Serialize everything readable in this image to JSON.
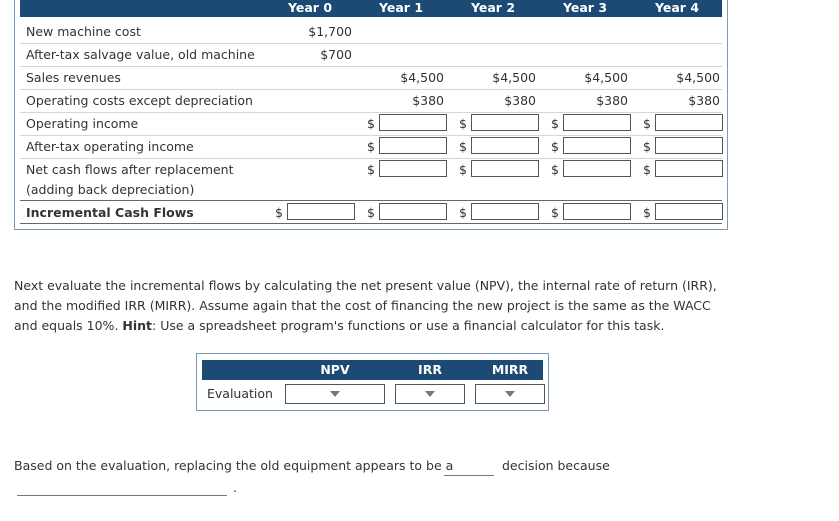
{
  "years": [
    "Year 0",
    "Year 1",
    "Year 2",
    "Year 3",
    "Year 4"
  ],
  "rows": [
    {
      "label": "New machine cost",
      "values": [
        "$1,700",
        "",
        "",
        "",
        ""
      ]
    },
    {
      "label": "After-tax salvage value, old machine",
      "values": [
        "$700",
        "",
        "",
        "",
        ""
      ]
    },
    {
      "label": "Sales revenues",
      "values": [
        "",
        "$4,500",
        "$4,500",
        "$4,500",
        "$4,500"
      ]
    },
    {
      "label": "Operating costs except depreciation",
      "values": [
        "",
        "$380",
        "$380",
        "$380",
        "$380"
      ]
    },
    {
      "label": "Operating income"
    },
    {
      "label": "After-tax operating income"
    },
    {
      "label": "Net cash flows after replacement"
    },
    {
      "label": "(adding back depreciation)"
    },
    {
      "label": "Incremental Cash Flows"
    }
  ],
  "currency_symbol": "$",
  "instructions": {
    "text": "Next evaluate the incremental flows by calculating the net present value (NPV), the internal rate of return (IRR), and the modified IRR (MIRR). Assume again that the cost of financing the new project is the same as the WACC and equals 10%. ",
    "hint_label": "Hint",
    "hint_text": ": Use a spreadsheet program's functions or use a financial calculator for this task."
  },
  "evaluation": {
    "row_label": "Evaluation",
    "columns": [
      "NPV",
      "IRR",
      "MIRR"
    ]
  },
  "conclusion": {
    "part1": "Based on the evaluation, replacing the old equipment appears to be a",
    "part2": "decision because",
    "end": "."
  },
  "colors": {
    "header_bg": "#1c4a74",
    "panel_border": "#7b9ab8"
  }
}
